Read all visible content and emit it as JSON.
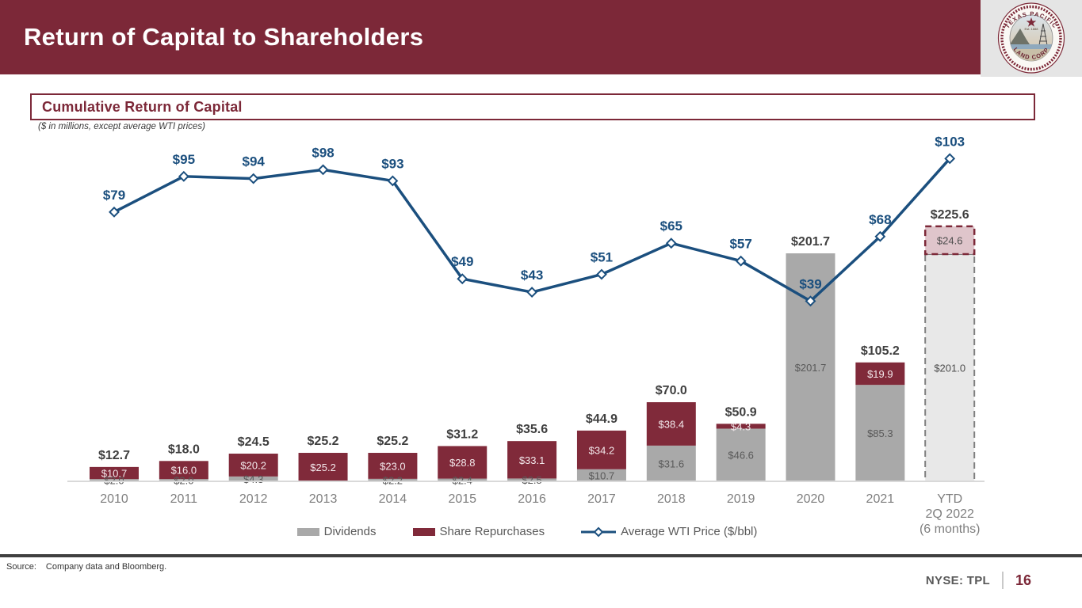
{
  "header": {
    "title": "Return of Capital to Shareholders"
  },
  "logo": {
    "arc_top": "TEXAS PACIFIC",
    "arc_bottom": "LAND CORP",
    "est": "Est. 1888"
  },
  "section": {
    "title": "Cumulative Return of Capital",
    "subtitle": "($ in millions, except average WTI prices)"
  },
  "legend": {
    "dividends": "Dividends",
    "repurchases": "Share Repurchases",
    "wti": "Average WTI Price ($/bbl)"
  },
  "footer": {
    "source_label": "Source:",
    "source": "Company data and Bloomberg.",
    "ticker": "NYSE: TPL",
    "page": "16"
  },
  "colors": {
    "maroon": "#7C2838",
    "bar_maroon": "#802A3A",
    "bar_gray": "#A9A9A9",
    "est_pink": "#DFC5CB",
    "est_pink_border": "#7C2838",
    "est_gray": "#E8E8E8",
    "est_gray_border": "#7F7F7F",
    "line_blue": "#1B4F7E",
    "label_dark": "#3F3F3F",
    "label_gray": "#595959",
    "axis_gray": "#7F7F7F",
    "axis_line": "#D9D9D9"
  },
  "chart_data": {
    "type": "bar",
    "subtype": "stacked bars with line overlay (combo chart)",
    "title": "Cumulative Return of Capital",
    "xlabel": "",
    "ylabel": "$ in millions (bars), $/bbl (line)",
    "grid": false,
    "value_axes_visible": false,
    "data_labels": true,
    "legend_position": "bottom",
    "categories": [
      "2010",
      "2011",
      "2012",
      "2013",
      "2014",
      "2015",
      "2016",
      "2017",
      "2018",
      "2019",
      "2020",
      "2021",
      "YTD 2Q 2022 (6 months)"
    ],
    "last_category_lines": [
      "YTD",
      "2Q 2022",
      "(6 months)"
    ],
    "series": [
      {
        "name": "Dividends",
        "type": "bar",
        "color": "#A9A9A9",
        "values": [
          2.0,
          2.0,
          4.3,
          0,
          2.2,
          2.4,
          2.5,
          10.7,
          31.6,
          46.6,
          201.7,
          85.3,
          201.0
        ],
        "labels": [
          "$2.0",
          "$2.0",
          "$4.3",
          "",
          "$2.2",
          "$2.4",
          "$2.5",
          "$10.7",
          "$31.6",
          "$46.6",
          "$201.7",
          "$85.3",
          "$201.0"
        ]
      },
      {
        "name": "Share Repurchases",
        "type": "bar",
        "color": "#802A3A",
        "values": [
          10.7,
          16.0,
          20.2,
          25.2,
          23.0,
          28.8,
          33.1,
          34.2,
          38.4,
          4.3,
          0,
          19.9,
          24.6
        ],
        "labels": [
          "$10.7",
          "$16.0",
          "$20.2",
          "$25.2",
          "$23.0",
          "$28.8",
          "$33.1",
          "$34.2",
          "$38.4",
          "$4.3",
          "",
          "$19.9",
          "$24.6"
        ]
      },
      {
        "name": "Average WTI Price ($/bbl)",
        "type": "line",
        "color": "#1B4F7E",
        "values": [
          79,
          95,
          94,
          98,
          93,
          49,
          43,
          51,
          65,
          57,
          39,
          68,
          103
        ],
        "labels": [
          "$79",
          "$95",
          "$94",
          "$98",
          "$93",
          "$49",
          "$43",
          "$51",
          "$65",
          "$57",
          "$39",
          "$68",
          "$103"
        ]
      }
    ],
    "totals": [
      12.7,
      18.0,
      24.5,
      25.2,
      25.2,
      31.2,
      35.6,
      44.9,
      70.0,
      50.9,
      201.7,
      105.2,
      225.6
    ],
    "totals_labels": [
      "$12.7",
      "$18.0",
      "$24.5",
      "$25.2",
      "$25.2",
      "$31.2",
      "$35.6",
      "$44.9",
      "$70.0",
      "$50.9",
      "$201.7",
      "$105.2",
      "$225.6"
    ],
    "estimated_last_category": true
  }
}
